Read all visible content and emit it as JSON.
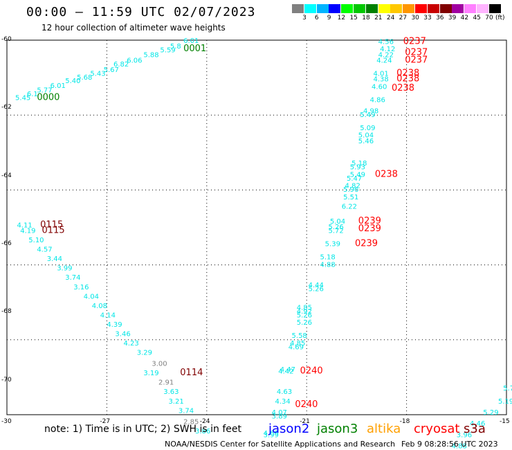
{
  "header": {
    "title": "00:00 – 11:59 UTC 02/07/2023",
    "subtitle": "12 hour collection of altimeter wave heights"
  },
  "legend": {
    "colors": [
      "#808080",
      "#00ffff",
      "#00b4ff",
      "#0000ff",
      "#00ff00",
      "#00c800",
      "#008000",
      "#ffff00",
      "#ffc800",
      "#ff9600",
      "#ff0000",
      "#c80000",
      "#800000",
      "#a000a0",
      "#ff80ff",
      "#ffb4ff",
      "#000000"
    ],
    "labels": [
      "3",
      "6",
      "9",
      "12",
      "15",
      "18",
      "21",
      "24",
      "27",
      "30",
      "33",
      "36",
      "39",
      "42",
      "45",
      "70"
    ],
    "unit": "(ft)"
  },
  "axes": {
    "lat_labels": [
      "-60",
      "-62",
      "-64",
      "-66",
      "-68",
      "-70"
    ],
    "lon_labels": [
      "-30",
      "-27",
      "-24",
      "-21",
      "-18",
      "-15"
    ]
  },
  "tracks": [
    {
      "color": "#00e6e6",
      "points": [
        {
          "t": "5.45",
          "lon": -29.75,
          "lat": -61.6
        },
        {
          "t": "6.1",
          "lon": -29.4,
          "lat": -61.5
        },
        {
          "t": "5.77",
          "lon": -29.1,
          "lat": -61.4
        },
        {
          "t": "6.01",
          "lon": -28.7,
          "lat": -61.28
        },
        {
          "t": "5.40",
          "lon": -28.25,
          "lat": -61.15
        },
        {
          "t": "5.68",
          "lon": -27.9,
          "lat": -61.05
        },
        {
          "t": "5.43",
          "lon": -27.5,
          "lat": -60.95
        },
        {
          "t": "5.67",
          "lon": -27.1,
          "lat": -60.85
        },
        {
          "t": "6.82",
          "lon": -26.8,
          "lat": -60.7
        },
        {
          "t": "6.06",
          "lon": -26.4,
          "lat": -60.6
        },
        {
          "t": "5.88",
          "lon": -25.9,
          "lat": -60.45
        },
        {
          "t": "5.59",
          "lon": -25.4,
          "lat": -60.32
        },
        {
          "t": "5.8",
          "lon": -25.1,
          "lat": -60.22
        },
        {
          "t": "6.01",
          "lon": -24.7,
          "lat": -60.07
        }
      ]
    },
    {
      "color": "#00e6e6",
      "points": [
        {
          "t": "4.11",
          "lon": -29.7,
          "lat": -65.0
        },
        {
          "t": "4.19",
          "lon": -29.6,
          "lat": -65.15
        },
        {
          "t": "5.10",
          "lon": -29.35,
          "lat": -65.4
        },
        {
          "t": "4.57",
          "lon": -29.1,
          "lat": -65.65
        },
        {
          "t": "3.44",
          "lon": -28.8,
          "lat": -65.9
        },
        {
          "t": "3.99",
          "lon": -28.5,
          "lat": -66.15
        },
        {
          "t": "3.74",
          "lon": -28.25,
          "lat": -66.4
        },
        {
          "t": "3.16",
          "lon": -28.0,
          "lat": -66.65
        },
        {
          "t": "4.04",
          "lon": -27.7,
          "lat": -66.9
        },
        {
          "t": "4.08",
          "lon": -27.45,
          "lat": -67.15
        },
        {
          "t": "4.14",
          "lon": -27.2,
          "lat": -67.4
        },
        {
          "t": "4.39",
          "lon": -27.0,
          "lat": -67.65
        },
        {
          "t": "3.46",
          "lon": -26.75,
          "lat": -67.9
        },
        {
          "t": "4.23",
          "lon": -26.5,
          "lat": -68.15
        },
        {
          "t": "3.29",
          "lon": -26.1,
          "lat": -68.4
        }
      ]
    },
    {
      "color": "#00e6e6",
      "points": [
        {
          "t": "3.19",
          "lon": -25.9,
          "lat": -68.95
        },
        {
          "t": "3.63",
          "lon": -25.3,
          "lat": -69.45
        },
        {
          "t": "3.21",
          "lon": -25.15,
          "lat": -69.7
        },
        {
          "t": "3.74",
          "lon": -24.85,
          "lat": -69.95
        },
        {
          "t": "3.86",
          "lon": -24.35,
          "lat": -70.5
        }
      ]
    },
    {
      "color": "#808080",
      "points": [
        {
          "t": "3.00",
          "lon": -25.65,
          "lat": -68.7
        },
        {
          "t": "2.91",
          "lon": -25.45,
          "lat": -69.2
        },
        {
          "t": "2.85",
          "lon": -24.7,
          "lat": -70.25
        }
      ]
    },
    {
      "color": "#00e6e6",
      "points": [
        {
          "t": "4.56",
          "lon": -18.85,
          "lat": -60.1
        },
        {
          "t": "4.12",
          "lon": -18.8,
          "lat": -60.3
        },
        {
          "t": "4.22",
          "lon": -18.85,
          "lat": -60.45
        },
        {
          "t": "4.24",
          "lon": -18.9,
          "lat": -60.6
        },
        {
          "t": "4.01",
          "lon": -19.0,
          "lat": -60.95
        },
        {
          "t": "4.38",
          "lon": -19.0,
          "lat": -61.1
        },
        {
          "t": "4.60",
          "lon": -19.05,
          "lat": -61.3
        },
        {
          "t": "4.86",
          "lon": -19.1,
          "lat": -61.65
        },
        {
          "t": "4.98",
          "lon": -19.3,
          "lat": -61.95
        },
        {
          "t": "5.49",
          "lon": -19.4,
          "lat": -62.05
        },
        {
          "t": "5.09",
          "lon": -19.4,
          "lat": -62.4
        },
        {
          "t": "5.04",
          "lon": -19.45,
          "lat": -62.6
        },
        {
          "t": "5.46",
          "lon": -19.45,
          "lat": -62.75
        },
        {
          "t": "5.18",
          "lon": -19.65,
          "lat": -63.35
        },
        {
          "t": "5.93",
          "lon": -19.7,
          "lat": -63.45
        },
        {
          "t": "5.49",
          "lon": -19.7,
          "lat": -63.65
        },
        {
          "t": "5.47",
          "lon": -19.8,
          "lat": -63.75
        },
        {
          "t": "4.82",
          "lon": -19.85,
          "lat": -63.95
        },
        {
          "t": "5.96",
          "lon": -19.9,
          "lat": -64.05
        },
        {
          "t": "5.51",
          "lon": -19.9,
          "lat": -64.25
        },
        {
          "t": "6.22",
          "lon": -19.95,
          "lat": -64.5
        },
        {
          "t": "5.04",
          "lon": -20.3,
          "lat": -64.9
        },
        {
          "t": "5.26",
          "lon": -20.35,
          "lat": -65.05
        },
        {
          "t": "5.72",
          "lon": -20.35,
          "lat": -65.15
        },
        {
          "t": "5.39",
          "lon": -20.45,
          "lat": -65.5
        },
        {
          "t": "5.18",
          "lon": -20.6,
          "lat": -65.85
        },
        {
          "t": "4.88",
          "lon": -20.6,
          "lat": -66.05
        },
        {
          "t": "4.44",
          "lon": -20.95,
          "lat": -66.6
        },
        {
          "t": "5.26",
          "lon": -20.95,
          "lat": -66.7
        },
        {
          "t": "4.85",
          "lon": -21.3,
          "lat": -67.2
        },
        {
          "t": "4.92",
          "lon": -21.3,
          "lat": -67.3
        },
        {
          "t": "5.26",
          "lon": -21.3,
          "lat": -67.4
        },
        {
          "t": "5.26",
          "lon": -21.3,
          "lat": -67.6
        },
        {
          "t": "5.58",
          "lon": -21.45,
          "lat": -67.95
        },
        {
          "t": "4.85",
          "lon": -21.5,
          "lat": -68.15
        },
        {
          "t": "4.69",
          "lon": -21.55,
          "lat": -68.25
        },
        {
          "t": "4.47",
          "lon": -21.8,
          "lat": -68.85
        },
        {
          "t": "4.42",
          "lon": -21.85,
          "lat": -68.9
        },
        {
          "t": "4.63",
          "lon": -21.9,
          "lat": -69.45
        },
        {
          "t": "4.34",
          "lon": -21.95,
          "lat": -69.7
        },
        {
          "t": "4.07",
          "lon": -22.05,
          "lat": -70.0
        },
        {
          "t": "3.89",
          "lon": -22.05,
          "lat": -70.1
        },
        {
          "t": "4.69",
          "lon": -22.3,
          "lat": -70.55
        },
        {
          "t": "3.99",
          "lon": -22.3,
          "lat": -70.6
        }
      ]
    },
    {
      "color": "#00e6e6",
      "points": [
        {
          "t": "5.7",
          "lon": -15.1,
          "lat": -69.35
        },
        {
          "t": "5.19",
          "lon": -15.25,
          "lat": -69.7
        },
        {
          "t": "5.29",
          "lon": -15.7,
          "lat": -70.0
        },
        {
          "t": "4.46",
          "lon": -16.1,
          "lat": -70.3
        },
        {
          "t": "3.96",
          "lon": -16.5,
          "lat": -70.6
        },
        {
          "t": "4.88",
          "lon": -16.65,
          "lat": -70.9
        }
      ]
    }
  ],
  "track_labels": [
    {
      "t": "0000",
      "color": "#008000",
      "lon": -29.1,
      "lat": -61.6
    },
    {
      "t": "0001",
      "color": "#008000",
      "lon": -24.7,
      "lat": -60.3
    },
    {
      "t": "0115",
      "color": "#800000",
      "lon": -29.0,
      "lat": -65.0
    },
    {
      "t": "0115",
      "color": "#800000",
      "lon": -28.95,
      "lat": -65.15
    },
    {
      "t": "0114",
      "color": "#800000",
      "lon": -24.8,
      "lat": -68.95
    },
    {
      "t": "0237",
      "color": "#ff0000",
      "lon": -18.1,
      "lat": -60.1
    },
    {
      "t": "0237",
      "color": "#ff0000",
      "lon": -18.05,
      "lat": -60.4
    },
    {
      "t": "0237",
      "color": "#ff0000",
      "lon": -18.05,
      "lat": -60.6
    },
    {
      "t": "0238",
      "color": "#ff0000",
      "lon": -18.3,
      "lat": -60.95
    },
    {
      "t": "0238",
      "color": "#ff0000",
      "lon": -18.3,
      "lat": -61.1
    },
    {
      "t": "0238",
      "color": "#ff0000",
      "lon": -18.45,
      "lat": -61.35
    },
    {
      "t": "0238",
      "color": "#ff0000",
      "lon": -18.95,
      "lat": -63.65
    },
    {
      "t": "0239",
      "color": "#ff0000",
      "lon": -19.45,
      "lat": -64.9
    },
    {
      "t": "0239",
      "color": "#ff0000",
      "lon": -19.45,
      "lat": -65.1
    },
    {
      "t": "0239",
      "color": "#ff0000",
      "lon": -19.55,
      "lat": -65.5
    },
    {
      "t": "0240",
      "color": "#ff0000",
      "lon": -21.2,
      "lat": -68.9
    },
    {
      "t": "0240",
      "color": "#ff0000",
      "lon": -21.35,
      "lat": -69.8
    },
    {
      "t": "0",
      "color": "#ff0000",
      "lon": -14.8,
      "lat": -70.0
    }
  ],
  "note": "note:  1) Time is in UTC;  2) SWH is in feet",
  "satellites": [
    {
      "name": "jason2",
      "color": "#0000ff"
    },
    {
      "name": "jason3",
      "color": "#008000"
    },
    {
      "name": "altika",
      "color": "#ffa000"
    },
    {
      "name": "cryosat",
      "color": "#ff0000"
    },
    {
      "name": "s3a",
      "color": "#800000"
    }
  ],
  "footer": "NOAA/NESDIS Center for Satellite Applications and Research",
  "footer_date": "Feb  9 08:28:56 UTC 2023"
}
